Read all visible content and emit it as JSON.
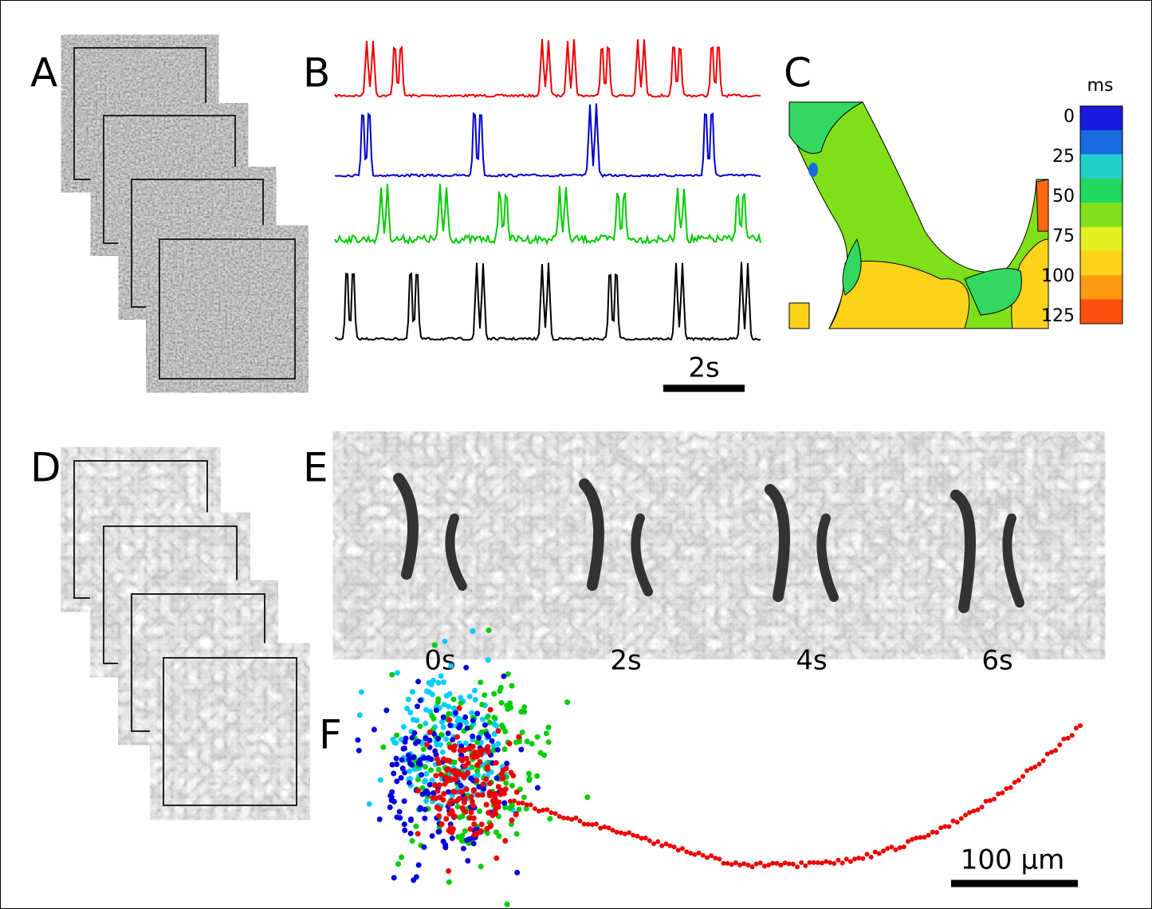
{
  "panel_labels": [
    "A",
    "B",
    "C",
    "D",
    "E",
    "F"
  ],
  "scale_bars": {
    "time": "2s",
    "length": "100 μm"
  },
  "colorbar": {
    "unit": "ms",
    "ticks": [
      0,
      25,
      50,
      75,
      100,
      125
    ]
  },
  "frame_times": [
    "0s",
    "2s",
    "4s",
    "6s"
  ]
}
